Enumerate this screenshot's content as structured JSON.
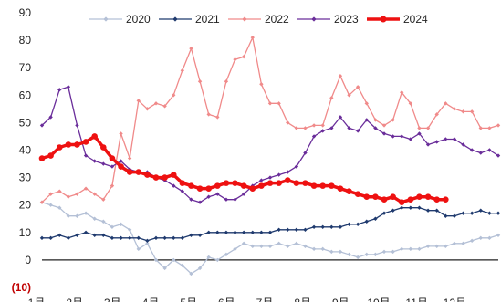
{
  "chart_data": {
    "type": "line",
    "title": "",
    "xlabel": "",
    "ylabel": "",
    "ylim": [
      -10,
      90
    ],
    "y_ticks": [
      "90",
      "80",
      "70",
      "60",
      "50",
      "40",
      "30",
      "20",
      "10",
      "0",
      "(10)"
    ],
    "x_tick_labels": [
      "1月",
      "2月",
      "3月",
      "4月",
      "5月",
      "6月",
      "7月",
      "8月",
      "9月",
      "10月",
      "11月",
      "12月"
    ],
    "x_points_per_series": 53,
    "grid": false,
    "zero_line": true,
    "legend_position": "top",
    "series": [
      {
        "name": "2020",
        "color": "#b4c0d6",
        "marker": "diamond",
        "values": [
          21,
          20,
          19,
          16,
          16,
          17,
          15,
          14,
          12,
          13,
          11,
          4,
          6,
          0,
          -3,
          0,
          -2,
          -5,
          -3,
          1,
          0,
          2,
          4,
          6,
          5,
          5,
          5,
          6,
          5,
          6,
          5,
          4,
          4,
          3,
          3,
          2,
          1,
          2,
          2,
          3,
          3,
          4,
          4,
          4,
          5,
          5,
          5,
          6,
          6,
          7,
          8,
          8,
          9
        ]
      },
      {
        "name": "2021",
        "color": "#1f3a6e",
        "marker": "diamond",
        "values": [
          8,
          8,
          9,
          8,
          9,
          10,
          9,
          9,
          8,
          8,
          8,
          8,
          7,
          8,
          8,
          8,
          8,
          9,
          9,
          10,
          10,
          10,
          10,
          10,
          10,
          10,
          10,
          11,
          11,
          11,
          11,
          12,
          12,
          12,
          12,
          13,
          13,
          14,
          15,
          17,
          18,
          19,
          19,
          19,
          18,
          18,
          16,
          16,
          17,
          17,
          18,
          17,
          17
        ]
      },
      {
        "name": "2022",
        "color": "#f08a8a",
        "marker": "diamond",
        "values": [
          21,
          24,
          25,
          23,
          24,
          26,
          24,
          22,
          27,
          46,
          37,
          58,
          55,
          57,
          56,
          60,
          69,
          77,
          65,
          53,
          52,
          65,
          73,
          74,
          81,
          64,
          57,
          57,
          50,
          48,
          48,
          49,
          49,
          59,
          67,
          60,
          63,
          57,
          51,
          49,
          51,
          61,
          57,
          48,
          48,
          53,
          57,
          55,
          54,
          54,
          48,
          48,
          49
        ]
      },
      {
        "name": "2023",
        "color": "#6a2d9a",
        "marker": "diamond",
        "values": [
          49,
          52,
          62,
          63,
          49,
          38,
          36,
          35,
          34,
          36,
          33,
          32,
          32,
          30,
          29,
          27,
          25,
          22,
          21,
          23,
          24,
          22,
          22,
          24,
          27,
          29,
          30,
          31,
          32,
          34,
          39,
          45,
          47,
          48,
          52,
          48,
          47,
          51,
          48,
          46,
          45,
          45,
          44,
          46,
          42,
          43,
          44,
          44,
          42,
          40,
          39,
          40,
          38
        ]
      },
      {
        "name": "2024",
        "color": "#ee1111",
        "marker": "circle",
        "values": [
          37,
          38,
          41,
          42,
          42,
          43,
          45,
          41,
          37,
          34,
          32,
          32,
          31,
          30,
          30,
          31,
          28,
          27,
          26,
          26,
          27,
          28,
          28,
          27,
          26,
          27,
          28,
          28,
          29,
          28,
          28,
          27,
          27,
          27,
          26,
          25,
          24,
          23,
          23,
          22,
          23,
          21,
          22,
          23,
          23,
          22,
          22
        ]
      }
    ]
  }
}
